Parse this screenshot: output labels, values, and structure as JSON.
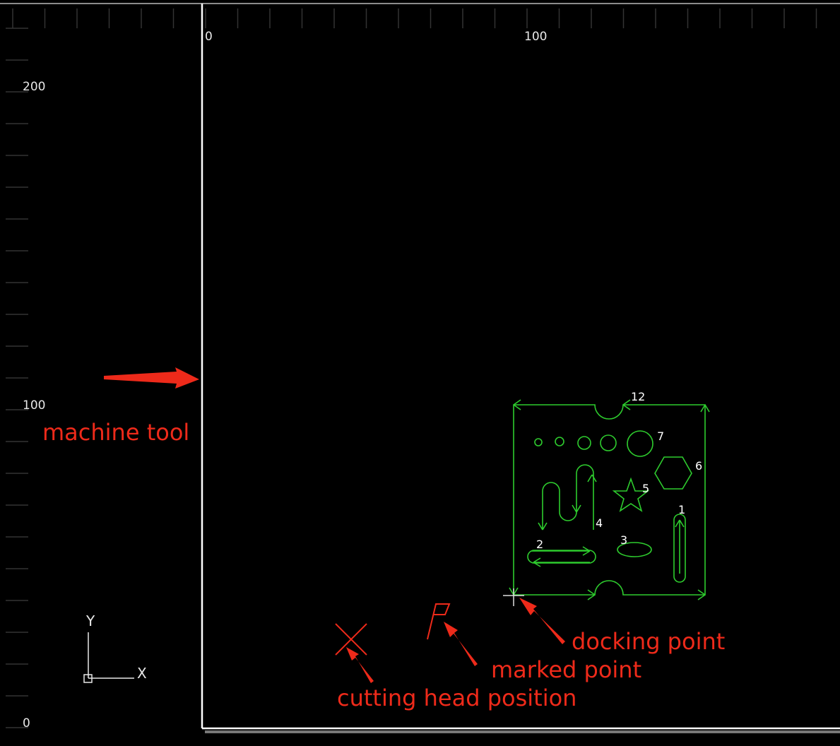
{
  "rulers": {
    "top": [
      "0",
      "100"
    ],
    "left": [
      "200",
      "100",
      "0"
    ]
  },
  "axis_icon": {
    "y": "Y",
    "x": "X"
  },
  "part_labels": [
    "12",
    "7",
    "6",
    "5",
    "1",
    "4",
    "3",
    "2"
  ],
  "annotations": {
    "machine_tool": "machine tool",
    "docking_point": "docking point",
    "marked_point": "marked point",
    "cutting_head": "cutting head position"
  }
}
